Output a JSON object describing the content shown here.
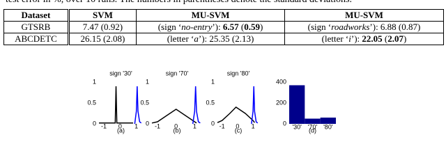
{
  "caption": "test error in %, over 10 runs. The numbers in parentheses denote the standard deviations.",
  "table": {
    "header": [
      "Dataset",
      "SVM",
      "MU-SVM",
      "MU-SVM"
    ],
    "rows": [
      [
        [
          {
            "t": "GTSRB"
          }
        ],
        [
          {
            "t": "7.47 (0.92)"
          }
        ],
        [
          {
            "t": "(sign ‘"
          },
          {
            "t": "no-entry",
            "i": true
          },
          {
            "t": "’): "
          },
          {
            "t": "6.57",
            "b": true
          },
          {
            "t": " ("
          },
          {
            "t": "0.59",
            "b": true
          },
          {
            "t": ")"
          }
        ],
        [
          {
            "t": "(sign ‘"
          },
          {
            "t": "roadworks",
            "i": true
          },
          {
            "t": "’): 6.88 (0.87)"
          }
        ]
      ],
      [
        [
          {
            "t": "ABCDETC"
          }
        ],
        [
          {
            "t": "26.15 (2.08)"
          }
        ],
        [
          {
            "t": "(letter ‘"
          },
          {
            "t": "a",
            "i": true
          },
          {
            "t": "’): 25.35 (2.13)"
          }
        ],
        [
          {
            "t": "(letter ‘"
          },
          {
            "t": "i",
            "i": true
          },
          {
            "t": "’): "
          },
          {
            "t": "22.05",
            "b": true
          },
          {
            "t": " ("
          },
          {
            "t": "2.07",
            "b": true
          },
          {
            "t": ")"
          }
        ]
      ]
    ]
  },
  "chart_data": [
    {
      "type": "line",
      "title": "sign '30'",
      "label": "(a)",
      "xlim": [
        -1.3,
        1.4
      ],
      "ylim": [
        0,
        1
      ],
      "xticks": [
        -1,
        0,
        1
      ],
      "yticks": [
        0,
        0.5,
        1
      ],
      "series": [
        {
          "color": "#000000",
          "x": [
            -1.3,
            -0.3,
            -0.25,
            -0.2,
            0.8
          ],
          "values": [
            0.02,
            0.02,
            0.9,
            0.02,
            0.02
          ]
        },
        {
          "color": "#0000ff",
          "x": [
            0.9,
            1.0,
            1.05,
            1.1,
            1.2,
            1.3
          ],
          "values": [
            0.0,
            0.3,
            0.9,
            0.3,
            0.05,
            0.02
          ]
        }
      ]
    },
    {
      "type": "line",
      "title": "sign '70'",
      "label": "(b)",
      "xlim": [
        -1.3,
        1.4
      ],
      "ylim": [
        0,
        1
      ],
      "xticks": [
        -1,
        0,
        1
      ],
      "yticks": [
        0,
        0.5,
        1
      ],
      "series": [
        {
          "color": "#000000",
          "x": [
            -1.3,
            -1,
            -0.5,
            0,
            0.5,
            1,
            1.1
          ],
          "values": [
            0.02,
            0.05,
            0.2,
            0.35,
            0.2,
            0.05,
            0.02
          ]
        },
        {
          "color": "#0000ff",
          "x": [
            0.9,
            1.0,
            1.05,
            1.1,
            1.2,
            1.3
          ],
          "values": [
            0.0,
            0.3,
            0.9,
            0.3,
            0.05,
            0.02
          ]
        }
      ]
    },
    {
      "type": "line",
      "title": "sign '80'",
      "label": "(c)",
      "xlim": [
        -1.3,
        1.4
      ],
      "ylim": [
        0,
        1
      ],
      "xticks": [
        -1,
        0,
        1
      ],
      "yticks": [
        0,
        0.5,
        1
      ],
      "series": [
        {
          "color": "#000000",
          "x": [
            -1.3,
            -1,
            -0.5,
            -0.1,
            0.5,
            1,
            1.1
          ],
          "values": [
            0.03,
            0.08,
            0.25,
            0.4,
            0.25,
            0.08,
            0.03
          ]
        },
        {
          "color": "#0000ff",
          "x": [
            0.9,
            1.0,
            1.05,
            1.1,
            1.2,
            1.3
          ],
          "values": [
            0.0,
            0.3,
            0.9,
            0.3,
            0.05,
            0.02
          ]
        }
      ]
    },
    {
      "type": "bar",
      "label": "(d)",
      "categories": [
        "'30'",
        "'70'",
        "'80'"
      ],
      "values": [
        370,
        50,
        60
      ],
      "color": "#00008b",
      "ylim": [
        0,
        400
      ],
      "yticks": [
        0,
        200,
        400
      ]
    }
  ]
}
